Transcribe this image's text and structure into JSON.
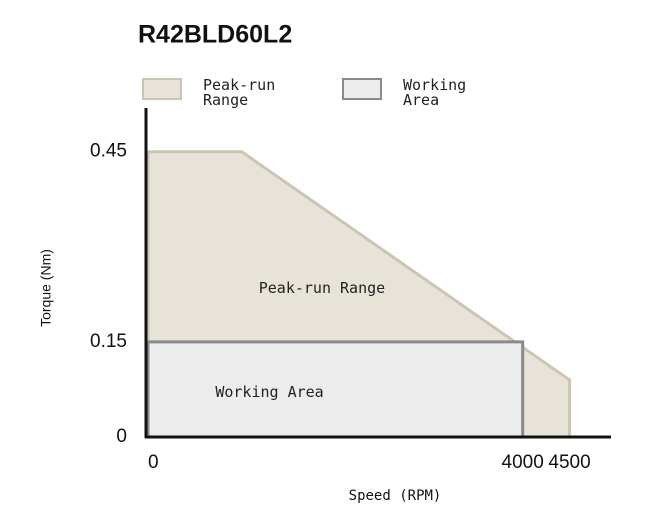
{
  "chart_data": {
    "type": "area",
    "title": "R42BLD60L2",
    "x_label": "Speed (RPM)",
    "y_label": "Torque (Nm)",
    "series": [
      {
        "name": "Peak-run Range",
        "color": "#e8e3d8",
        "stroke": "#cdc5b4",
        "x": [
          0,
          1000,
          4500
        ],
        "values": [
          0.45,
          0.45,
          0.09
        ]
      },
      {
        "name": "Working Area",
        "color": "#ececec",
        "stroke": "#8a8a8a",
        "x": [
          0,
          4000
        ],
        "values": [
          0.15,
          0.15
        ]
      }
    ],
    "xlim": [
      0,
      4900
    ],
    "ylim": [
      0,
      0.5
    ],
    "xticks": [
      0,
      4000,
      4500
    ],
    "yticks": [
      0,
      0.15,
      0.45
    ]
  }
}
